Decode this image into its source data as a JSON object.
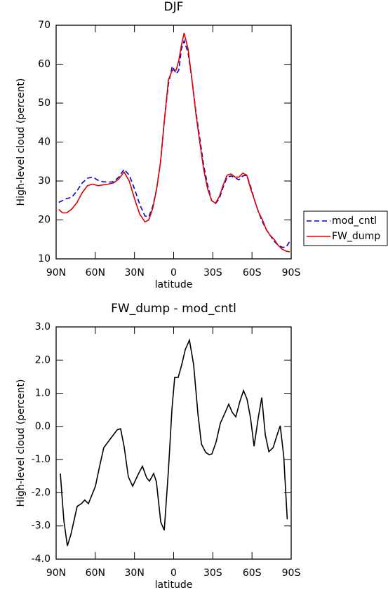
{
  "chart_data": [
    {
      "type": "line",
      "title": "DJF",
      "xlabel": "latitude",
      "ylabel": "High-level cloud (percent)",
      "x": [
        88,
        85,
        82,
        78,
        74,
        70,
        66,
        62,
        58,
        54,
        50,
        46,
        42,
        38,
        34,
        30,
        26,
        22,
        19,
        16,
        13,
        10,
        7,
        4,
        1,
        -2,
        -4,
        -6,
        -8,
        -11,
        -14,
        -17,
        -20,
        -23,
        -26,
        -29,
        -32,
        -35,
        -38,
        -41,
        -44,
        -47,
        -50,
        -53,
        -56,
        -59,
        -62,
        -65,
        -68,
        -71,
        -74,
        -77,
        -80,
        -83,
        -86,
        -89
      ],
      "series": [
        {
          "name": "mod_cntl",
          "color": "#0000cc",
          "line_style": "dashed",
          "values": [
            24.5,
            25,
            25.5,
            25.8,
            27.5,
            29.5,
            30.7,
            31,
            30.2,
            29.8,
            29.7,
            29.8,
            31,
            33,
            31.5,
            28,
            24,
            21,
            20.8,
            23.5,
            28,
            35,
            46,
            55,
            59.5,
            57.5,
            58.5,
            64,
            66,
            63,
            56,
            48,
            41,
            34,
            29,
            25,
            24.2,
            25.5,
            28.5,
            31,
            31.3,
            30.8,
            30.3,
            31.3,
            31.5,
            28.5,
            25,
            22,
            19.5,
            17.5,
            16,
            14.5,
            13.5,
            13,
            13,
            14.5
          ]
        },
        {
          "name": "FW_dump",
          "color": "#e00000",
          "line_style": "solid",
          "values": [
            22.7,
            21.8,
            21.8,
            22.8,
            24.5,
            27,
            28.8,
            29.2,
            28.8,
            29,
            29.2,
            29.5,
            30.5,
            32.3,
            30,
            25.5,
            21.5,
            19.5,
            20,
            23,
            28,
            35,
            46,
            56,
            58.5,
            58.5,
            61,
            65,
            68,
            64,
            56,
            47.5,
            40,
            33,
            28,
            25,
            24.3,
            26,
            29,
            31.5,
            31.8,
            31,
            31,
            32,
            31.5,
            28,
            25,
            22,
            20,
            17.5,
            16,
            15,
            13.5,
            12.5,
            12,
            11.8
          ]
        }
      ],
      "xlim": [
        90,
        -90
      ],
      "xticks": [
        {
          "value": 90,
          "label": "90N"
        },
        {
          "value": 60,
          "label": "60N"
        },
        {
          "value": 30,
          "label": "30N"
        },
        0,
        {
          "value": -30,
          "label": "30S"
        },
        {
          "value": -60,
          "label": "60S"
        },
        {
          "value": -90,
          "label": "90S"
        }
      ],
      "ylim": [
        10,
        70
      ],
      "yticks": [
        10,
        20,
        30,
        40,
        50,
        60,
        70
      ],
      "legend": "right"
    },
    {
      "type": "line",
      "title": "FW_dump - mod_cntl",
      "xlabel": "latitude",
      "ylabel": "High-level cloud (percent)",
      "x": [
        86.8,
        84.1,
        81.4,
        78.7,
        73.9,
        70.7,
        68,
        65.3,
        59.9,
        56.7,
        53.5,
        47,
        43.2,
        40.6,
        37.9,
        34.7,
        31.4,
        27.1,
        23.9,
        20.7,
        18.5,
        15.3,
        13.2,
        9.9,
        7.2,
        4,
        1.3,
        -0.8,
        -3.5,
        -6.2,
        -8.9,
        -12.1,
        -15.3,
        -18.6,
        -21.3,
        -24.5,
        -27.1,
        -29.3,
        -32.5,
        -35.8,
        -39,
        -42.2,
        -44.9,
        -47.6,
        -50.8,
        -53.5,
        -56.2,
        -58.9,
        -61.6,
        -64.9,
        -67.5,
        -70.2,
        -72.9,
        -76.2,
        -78.9,
        -81.6,
        -84.3,
        -87
      ],
      "values": [
        -1.42,
        -2.84,
        -3.6,
        -3.26,
        -2.41,
        -2.33,
        -2.22,
        -2.33,
        -1.8,
        -1.2,
        -0.64,
        -0.3,
        -0.1,
        -0.07,
        -0.62,
        -1.52,
        -1.8,
        -1.44,
        -1.2,
        -1.55,
        -1.65,
        -1.42,
        -1.67,
        -2.88,
        -3.13,
        -1.31,
        0.53,
        1.48,
        1.48,
        1.86,
        2.32,
        2.6,
        1.86,
        0.38,
        -0.53,
        -0.78,
        -0.85,
        -0.83,
        -0.47,
        0.1,
        0.38,
        0.67,
        0.42,
        0.29,
        0.76,
        1.08,
        0.82,
        0.25,
        -0.6,
        0.29,
        0.87,
        -0.25,
        -0.76,
        -0.64,
        -0.3,
        0.02,
        -0.9,
        -2.8
      ],
      "color": "#000000",
      "xlim": [
        90,
        -90
      ],
      "xticks": [
        {
          "value": 90,
          "label": "90N"
        },
        {
          "value": 60,
          "label": "60N"
        },
        {
          "value": 30,
          "label": "30N"
        },
        0,
        {
          "value": -30,
          "label": "30S"
        },
        {
          "value": -60,
          "label": "60S"
        },
        {
          "value": -90,
          "label": "90S"
        }
      ],
      "ylim": [
        -4,
        3
      ],
      "yticks": [
        {
          "value": -4,
          "label": "-4.0"
        },
        {
          "value": -3,
          "label": "-3.0"
        },
        {
          "value": -2,
          "label": "-2.0"
        },
        {
          "value": -1,
          "label": "-1.0"
        },
        {
          "value": 0,
          "label": "0.0"
        },
        {
          "value": 1,
          "label": "1.0"
        },
        {
          "value": 2,
          "label": "2.0"
        },
        {
          "value": 3,
          "label": "3.0"
        }
      ]
    }
  ]
}
